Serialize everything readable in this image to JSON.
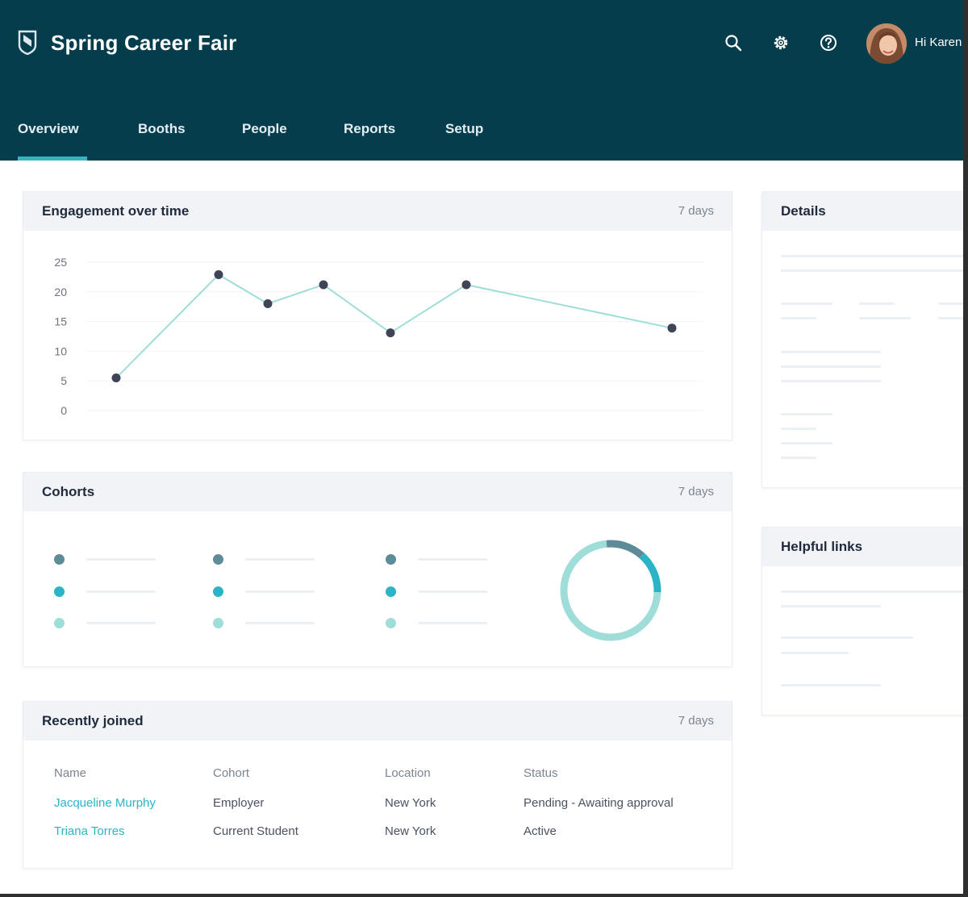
{
  "header": {
    "title": "Spring Career Fair",
    "greeting": "Hi Karen",
    "icons": [
      "shield-logo-icon",
      "search-icon",
      "gear-icon",
      "help-icon"
    ]
  },
  "tabs": [
    {
      "label": "Overview",
      "active": true
    },
    {
      "label": "Booths",
      "active": false
    },
    {
      "label": "People",
      "active": false
    },
    {
      "label": "Reports",
      "active": false
    },
    {
      "label": "Setup",
      "active": false
    }
  ],
  "engagement": {
    "title": "Engagement over time",
    "range": "7 days"
  },
  "cohorts": {
    "title": "Cohorts",
    "range": "7 days",
    "colors": [
      "#5d8b97",
      "#2bb4c6",
      "#9fddd8"
    ],
    "donut": [
      {
        "value": 0.13,
        "color": "#5d8b97"
      },
      {
        "value": 0.14,
        "color": "#2bb4c6"
      },
      {
        "value": 0.73,
        "color": "#9fddd8"
      }
    ]
  },
  "recently_joined": {
    "title": "Recently joined",
    "range": "7 days",
    "columns": [
      "Name",
      "Cohort",
      "Location",
      "Status"
    ],
    "rows": [
      {
        "name": "Jacqueline Murphy",
        "cohort": "Employer",
        "location": "New York",
        "status": "Pending - Awaiting approval"
      },
      {
        "name": "Triana Torres",
        "cohort": "Current Student",
        "location": "New York",
        "status": "Active"
      }
    ]
  },
  "details": {
    "title": "Details"
  },
  "helpful_links": {
    "title": "Helpful links"
  },
  "colors": {
    "header_bg": "#053d4d",
    "accent": "#38b3c5",
    "line": "#9fddd8",
    "point": "#3f4556"
  },
  "chart_data": {
    "type": "line",
    "title": "Engagement over time",
    "x": [
      1,
      2,
      3,
      4,
      5,
      6,
      7
    ],
    "series": [
      {
        "name": "Engagement",
        "values": [
          5.5,
          22.9,
          18,
          21.2,
          13.1,
          21.2,
          13.9
        ]
      }
    ],
    "yticks": [
      "25",
      "20",
      "15",
      "10",
      "5",
      "0"
    ],
    "ylim": [
      0,
      25
    ],
    "xlabel": "",
    "ylabel": "",
    "grid": true
  }
}
